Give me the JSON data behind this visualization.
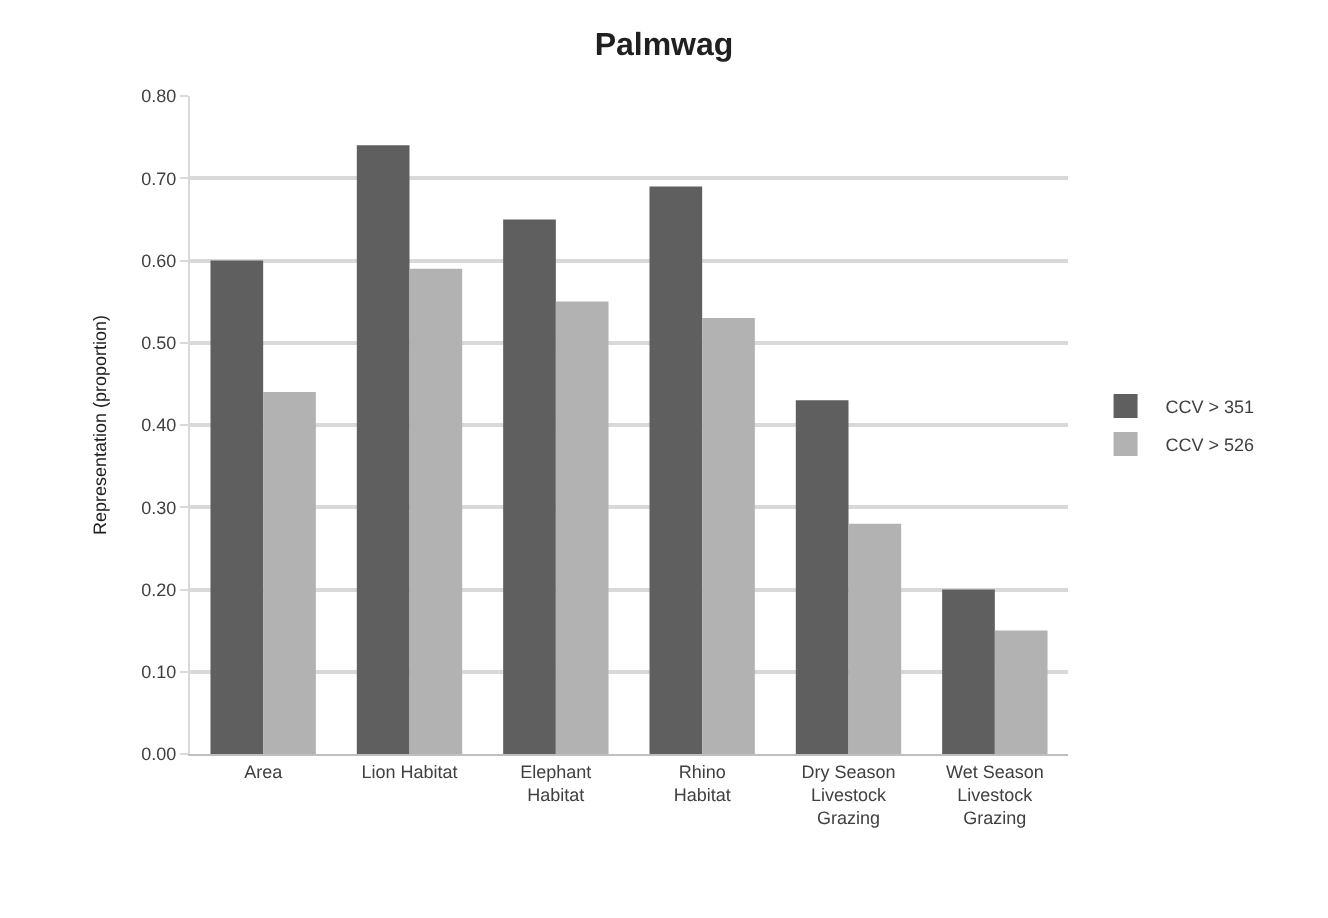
{
  "chart_data": {
    "type": "bar",
    "title": "Palmwag",
    "ylabel": "Representation (proportion)",
    "categories": [
      "Area",
      "Lion Habitat",
      "Elephant\nHabitat",
      "Rhino\nHabitat",
      "Dry Season\nLivestock\nGrazing",
      "Wet Season\nLivestock\nGrazing"
    ],
    "series": [
      {
        "name": "CCV > 351",
        "color": "#5f5f5f",
        "values": [
          0.6,
          0.74,
          0.65,
          0.69,
          0.43,
          0.2
        ]
      },
      {
        "name": "CCV > 526",
        "color": "#b2b2b2",
        "values": [
          0.44,
          0.59,
          0.55,
          0.53,
          0.28,
          0.15
        ]
      }
    ],
    "ylim": [
      0,
      0.8
    ],
    "yticks": [
      {
        "value": 0,
        "label": "0.00"
      },
      {
        "value": 0.1,
        "label": "0.10"
      },
      {
        "value": 0.2,
        "label": "0.20"
      },
      {
        "value": 0.3,
        "label": "0.30"
      },
      {
        "value": 0.4,
        "label": "0.40"
      },
      {
        "value": 0.5,
        "label": "0.50"
      },
      {
        "value": 0.6,
        "label": "0.60"
      },
      {
        "value": 0.7,
        "label": "0.70"
      },
      {
        "value": 0.8,
        "label": "0.80"
      }
    ],
    "grid": "y",
    "legend": "right"
  }
}
